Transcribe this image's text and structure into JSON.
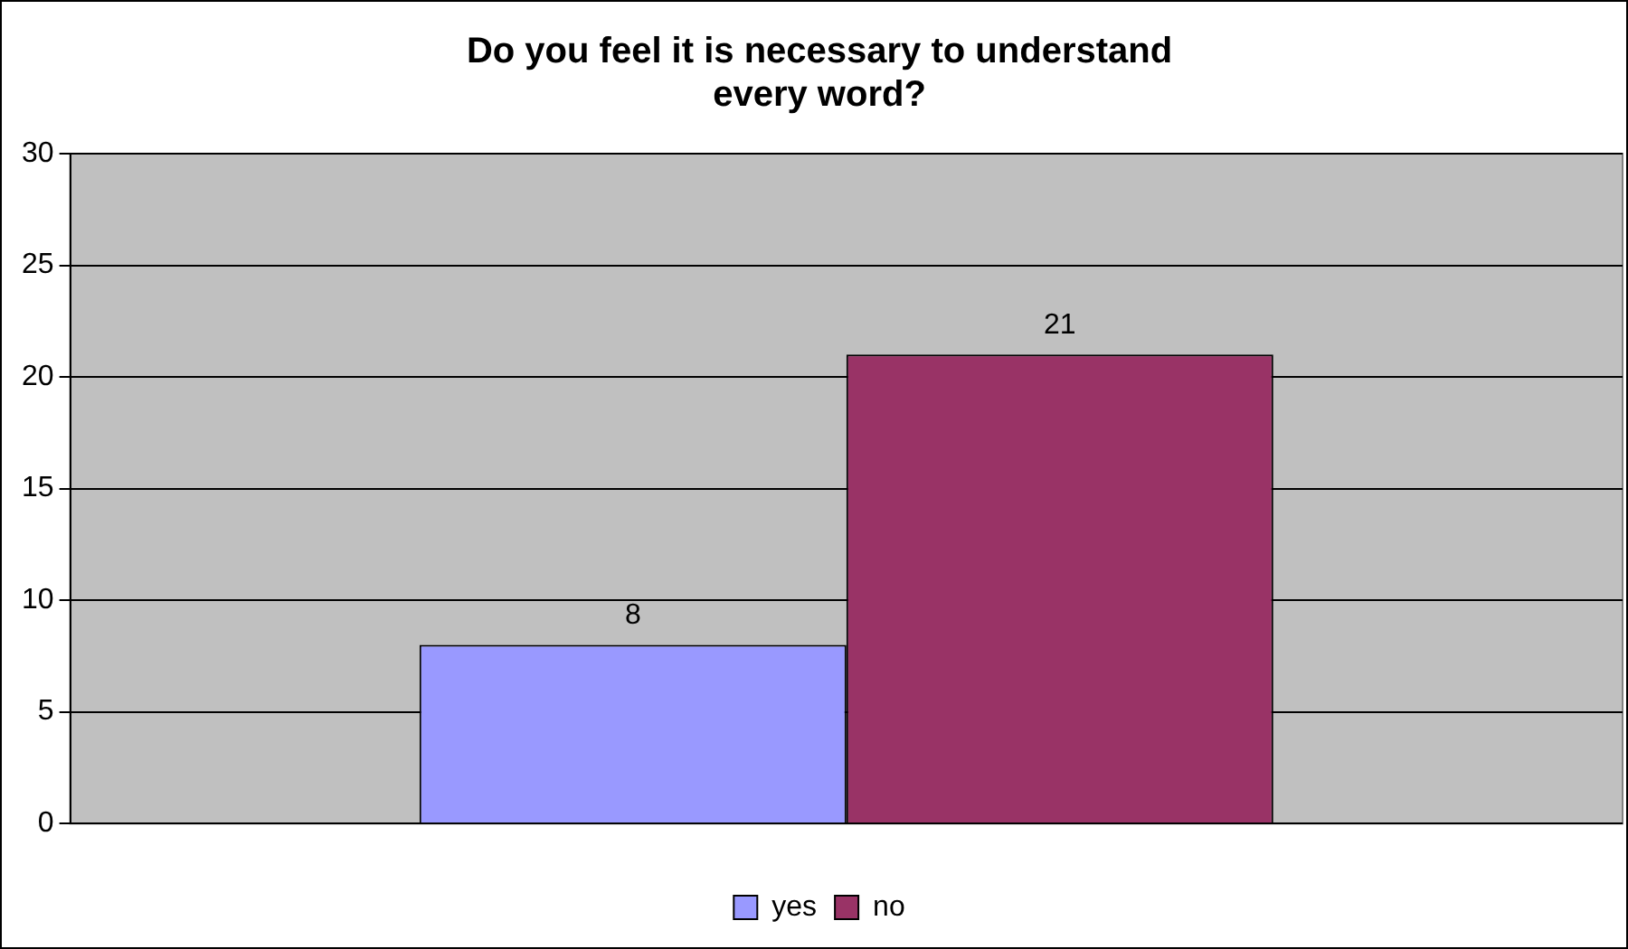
{
  "chart_data": {
    "type": "bar",
    "title": "Do you feel it is necessary to understand every word?",
    "categories": [
      null
    ],
    "series": [
      {
        "name": "yes",
        "color": "#9999ff",
        "values": [
          8
        ]
      },
      {
        "name": "no",
        "color": "#993366",
        "values": [
          21
        ]
      }
    ],
    "ylim": [
      0,
      30
    ],
    "yticks": [
      0,
      5,
      10,
      15,
      20,
      25,
      30
    ],
    "grid": "y",
    "legend": "bottom",
    "data_labels": true
  }
}
